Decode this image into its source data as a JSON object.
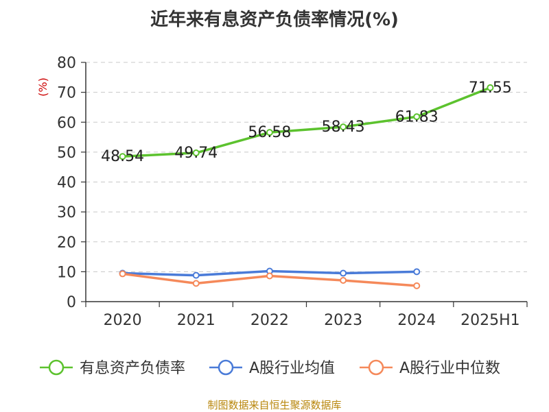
{
  "chart_data": {
    "type": "line",
    "title": "近年来有息资产负债率情况(%)",
    "ylabel": "(%)",
    "xlabel": "",
    "categories": [
      "2020",
      "2021",
      "2022",
      "2023",
      "2024",
      "2025H1"
    ],
    "ylim": [
      0,
      80
    ],
    "yticks": [
      0,
      10,
      20,
      30,
      40,
      50,
      60,
      70,
      80
    ],
    "grid": true,
    "legend_position": "bottom",
    "series": [
      {
        "name": "有息资产负债率",
        "color": "#5cc22e",
        "values": [
          48.54,
          49.74,
          56.58,
          58.43,
          61.83,
          71.55
        ],
        "data_labels": [
          "48.54",
          "49.74",
          "56.58",
          "58.43",
          "61.83",
          "71.55"
        ]
      },
      {
        "name": "A股行业均值",
        "color": "#4a7bd8",
        "values": [
          9.5,
          8.8,
          10.2,
          9.5,
          10.0,
          null
        ]
      },
      {
        "name": "A股行业中位数",
        "color": "#f5895a",
        "values": [
          9.3,
          6.1,
          8.6,
          7.1,
          5.3,
          null
        ]
      }
    ]
  },
  "source": "制图数据来自恒生聚源数据库"
}
